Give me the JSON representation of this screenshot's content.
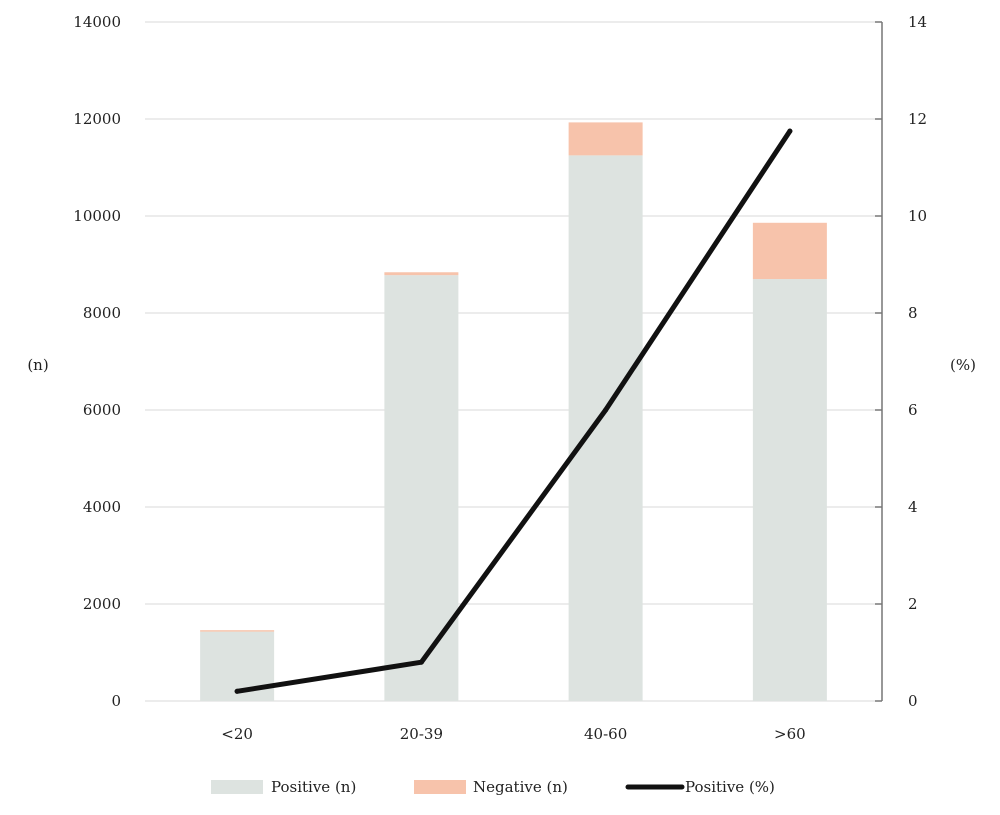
{
  "chart_data": {
    "type": "bar",
    "stacked": true,
    "categories": [
      "<20",
      "20-39",
      "40-60",
      ">60"
    ],
    "series": [
      {
        "name": "Positive (n)",
        "type": "bar",
        "axis": "left",
        "color": "#dde3e0",
        "values": [
          1430,
          8780,
          11250,
          8700
        ]
      },
      {
        "name": "Negative (n)",
        "type": "bar",
        "axis": "left",
        "color": "#f7c3ab",
        "values": [
          30,
          60,
          680,
          1160
        ]
      },
      {
        "name": "Positive (%)",
        "type": "line",
        "axis": "right",
        "color": "#111111",
        "values": [
          0.2,
          0.8,
          6.0,
          11.75
        ]
      }
    ],
    "y_left": {
      "label": "(n)",
      "lim": [
        0,
        14000
      ],
      "ticks": [
        0,
        2000,
        4000,
        6000,
        8000,
        10000,
        12000,
        14000
      ]
    },
    "y_right": {
      "label": "(%)",
      "lim": [
        0,
        14
      ],
      "ticks": [
        0,
        2,
        4,
        6,
        8,
        10,
        12,
        14
      ]
    },
    "grid": true,
    "legend_position": "bottom"
  }
}
